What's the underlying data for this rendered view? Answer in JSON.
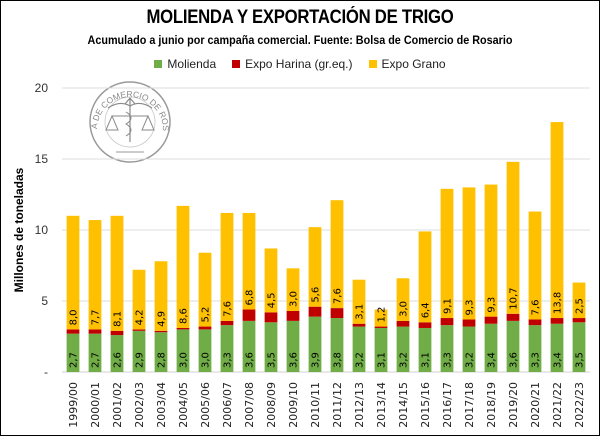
{
  "chart_data": {
    "type": "bar",
    "stacked": true,
    "title": "MOLIENDA Y EXPORTACIÓN DE TRIGO",
    "subtitle": "Acumulado a junio por campaña comercial. Fuente: Bolsa de Comercio de Rosario",
    "xlabel": "",
    "ylabel": "Millones de toneladas",
    "ylim": [
      0,
      20
    ],
    "yticks": [
      {
        "value": 0,
        "label": "-"
      },
      {
        "value": 5,
        "label": "5"
      },
      {
        "value": 10,
        "label": "10"
      },
      {
        "value": 15,
        "label": "15"
      },
      {
        "value": 20,
        "label": "20"
      }
    ],
    "grid": true,
    "legend_position": "top",
    "watermark": "BOLSA DE COMERCIO DE ROSARIO",
    "categories": [
      "1999/00",
      "2000/01",
      "2001/02",
      "2002/03",
      "2003/04",
      "2004/05",
      "2005/06",
      "2006/07",
      "2007/08",
      "2008/09",
      "2009/10",
      "2010/11",
      "2011/12",
      "2012/13",
      "2013/14",
      "2014/15",
      "2015/16",
      "2016/17",
      "2017/18",
      "2018/19",
      "2019/20",
      "2020/21",
      "2021/22",
      "2022/23"
    ],
    "series": [
      {
        "name": "Molienda",
        "color": "#70AD47",
        "labeled": true,
        "values": [
          2.7,
          2.7,
          2.6,
          2.9,
          2.8,
          3.0,
          3.0,
          3.3,
          3.6,
          3.5,
          3.6,
          3.9,
          3.8,
          3.2,
          3.1,
          3.2,
          3.1,
          3.3,
          3.2,
          3.4,
          3.6,
          3.3,
          3.4,
          3.5
        ]
      },
      {
        "name": "Expo Harina (gr.eq.)",
        "color": "#C00000",
        "labeled": false,
        "values": [
          0.3,
          0.3,
          0.3,
          0.1,
          0.1,
          0.1,
          0.2,
          0.3,
          0.8,
          0.7,
          0.7,
          0.7,
          0.7,
          0.2,
          0.1,
          0.4,
          0.4,
          0.5,
          0.5,
          0.5,
          0.5,
          0.4,
          0.4,
          0.3
        ]
      },
      {
        "name": "Expo Grano",
        "color": "#FFC000",
        "labeled": true,
        "values": [
          8.0,
          7.7,
          8.1,
          4.2,
          4.9,
          8.6,
          5.2,
          7.6,
          6.8,
          4.5,
          3.0,
          5.6,
          7.6,
          3.1,
          1.2,
          3.0,
          6.4,
          9.1,
          9.3,
          9.3,
          10.7,
          7.6,
          13.8,
          2.5
        ]
      }
    ]
  },
  "decimal_separator": ","
}
